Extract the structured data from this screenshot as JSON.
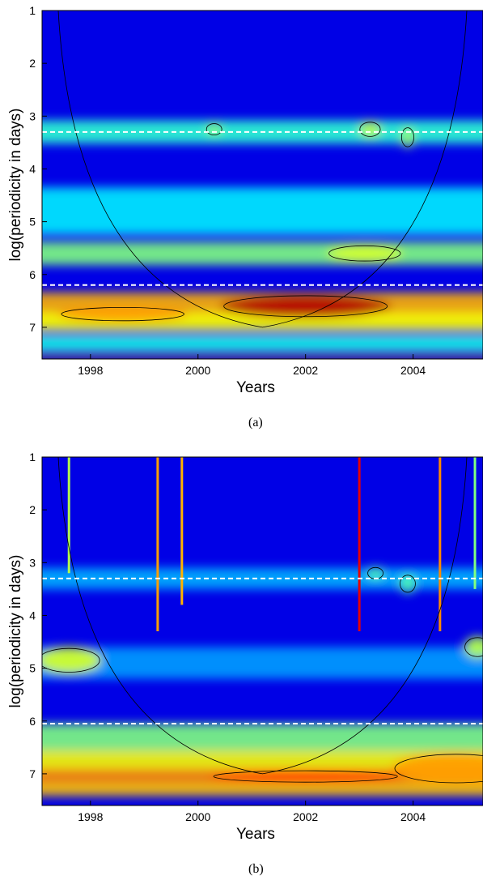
{
  "chart_data": [
    {
      "type": "heatmap",
      "caption": "(a)",
      "xlabel": "Years",
      "ylabel": "log(periodicity in days)",
      "xlim": [
        1997.1,
        2005.3
      ],
      "ylim": [
        1,
        7.6
      ],
      "y_inverted": true,
      "x_ticks": [
        1998,
        2000,
        2002,
        2004
      ],
      "y_ticks": [
        1,
        2,
        3,
        4,
        5,
        6,
        7
      ],
      "reference_lines": [
        3.3,
        6.2
      ],
      "cone_of_influence_apex": {
        "x": 2001.2,
        "y": 7.0
      },
      "bands": [
        {
          "y": 3.3,
          "intensity": 0.42,
          "halfwidth": 0.22
        },
        {
          "y": 4.8,
          "intensity": 0.36,
          "halfwidth": 0.45
        },
        {
          "y": 5.6,
          "intensity": 0.5,
          "halfwidth": 0.22
        },
        {
          "y": 6.6,
          "intensity": 0.7,
          "halfwidth": 0.26
        },
        {
          "y": 6.9,
          "intensity": 0.62,
          "halfwidth": 0.18
        },
        {
          "y": 7.3,
          "intensity": 0.4,
          "halfwidth": 0.15
        },
        {
          "y": 7.57,
          "intensity": 1.0,
          "halfwidth": 0.05
        }
      ],
      "hotspots": [
        {
          "x": 2002.0,
          "y": 6.6,
          "intensity": 0.95,
          "wx": 1.6,
          "wy": 0.22
        },
        {
          "x": 1998.6,
          "y": 6.75,
          "intensity": 0.72,
          "wx": 1.2,
          "wy": 0.14
        },
        {
          "x": 2003.1,
          "y": 5.6,
          "intensity": 0.58,
          "wx": 0.7,
          "wy": 0.16
        },
        {
          "x": 2003.2,
          "y": 3.25,
          "intensity": 0.55,
          "wx": 0.2,
          "wy": 0.15
        },
        {
          "x": 2000.3,
          "y": 3.25,
          "intensity": 0.5,
          "wx": 0.15,
          "wy": 0.12
        },
        {
          "x": 2003.9,
          "y": 3.4,
          "intensity": 0.52,
          "wx": 0.12,
          "wy": 0.2
        }
      ],
      "spikes": []
    },
    {
      "type": "heatmap",
      "caption": "(b)",
      "xlabel": "Years",
      "ylabel": "log(periodicity in days)",
      "xlim": [
        1997.1,
        2005.3
      ],
      "ylim": [
        1,
        7.6
      ],
      "y_inverted": true,
      "x_ticks": [
        1998,
        2000,
        2002,
        2004
      ],
      "y_ticks": [
        1,
        2,
        3,
        4,
        5,
        6,
        7
      ],
      "reference_lines": [
        3.3,
        6.05
      ],
      "cone_of_influence_apex": {
        "x": 2001.2,
        "y": 7.0
      },
      "bands": [
        {
          "y": 3.3,
          "intensity": 0.3,
          "halfwidth": 0.2
        },
        {
          "y": 4.9,
          "intensity": 0.28,
          "halfwidth": 0.3
        },
        {
          "y": 6.3,
          "intensity": 0.5,
          "halfwidth": 0.25
        },
        {
          "y": 6.75,
          "intensity": 0.62,
          "halfwidth": 0.2
        },
        {
          "y": 7.05,
          "intensity": 0.74,
          "halfwidth": 0.15
        },
        {
          "y": 7.3,
          "intensity": 0.68,
          "halfwidth": 0.12
        }
      ],
      "hotspots": [
        {
          "x": 1997.6,
          "y": 4.85,
          "intensity": 0.58,
          "wx": 0.6,
          "wy": 0.25
        },
        {
          "x": 2004.8,
          "y": 6.9,
          "intensity": 0.72,
          "wx": 1.2,
          "wy": 0.3
        },
        {
          "x": 2002.0,
          "y": 7.05,
          "intensity": 0.82,
          "wx": 1.8,
          "wy": 0.12
        },
        {
          "x": 2005.2,
          "y": 4.6,
          "intensity": 0.55,
          "wx": 0.25,
          "wy": 0.2
        },
        {
          "x": 2003.3,
          "y": 3.2,
          "intensity": 0.45,
          "wx": 0.15,
          "wy": 0.12
        },
        {
          "x": 2003.9,
          "y": 3.4,
          "intensity": 0.45,
          "wx": 0.15,
          "wy": 0.18
        }
      ],
      "spikes": [
        {
          "x": 1997.6,
          "intensity": 0.55,
          "depth": 2.2
        },
        {
          "x": 1999.25,
          "intensity": 0.72,
          "depth": 3.3
        },
        {
          "x": 1999.7,
          "intensity": 0.7,
          "depth": 2.8
        },
        {
          "x": 2003.0,
          "intensity": 0.9,
          "depth": 3.3
        },
        {
          "x": 2004.5,
          "intensity": 0.74,
          "depth": 3.3
        },
        {
          "x": 2005.15,
          "intensity": 0.5,
          "depth": 2.5
        }
      ]
    }
  ]
}
